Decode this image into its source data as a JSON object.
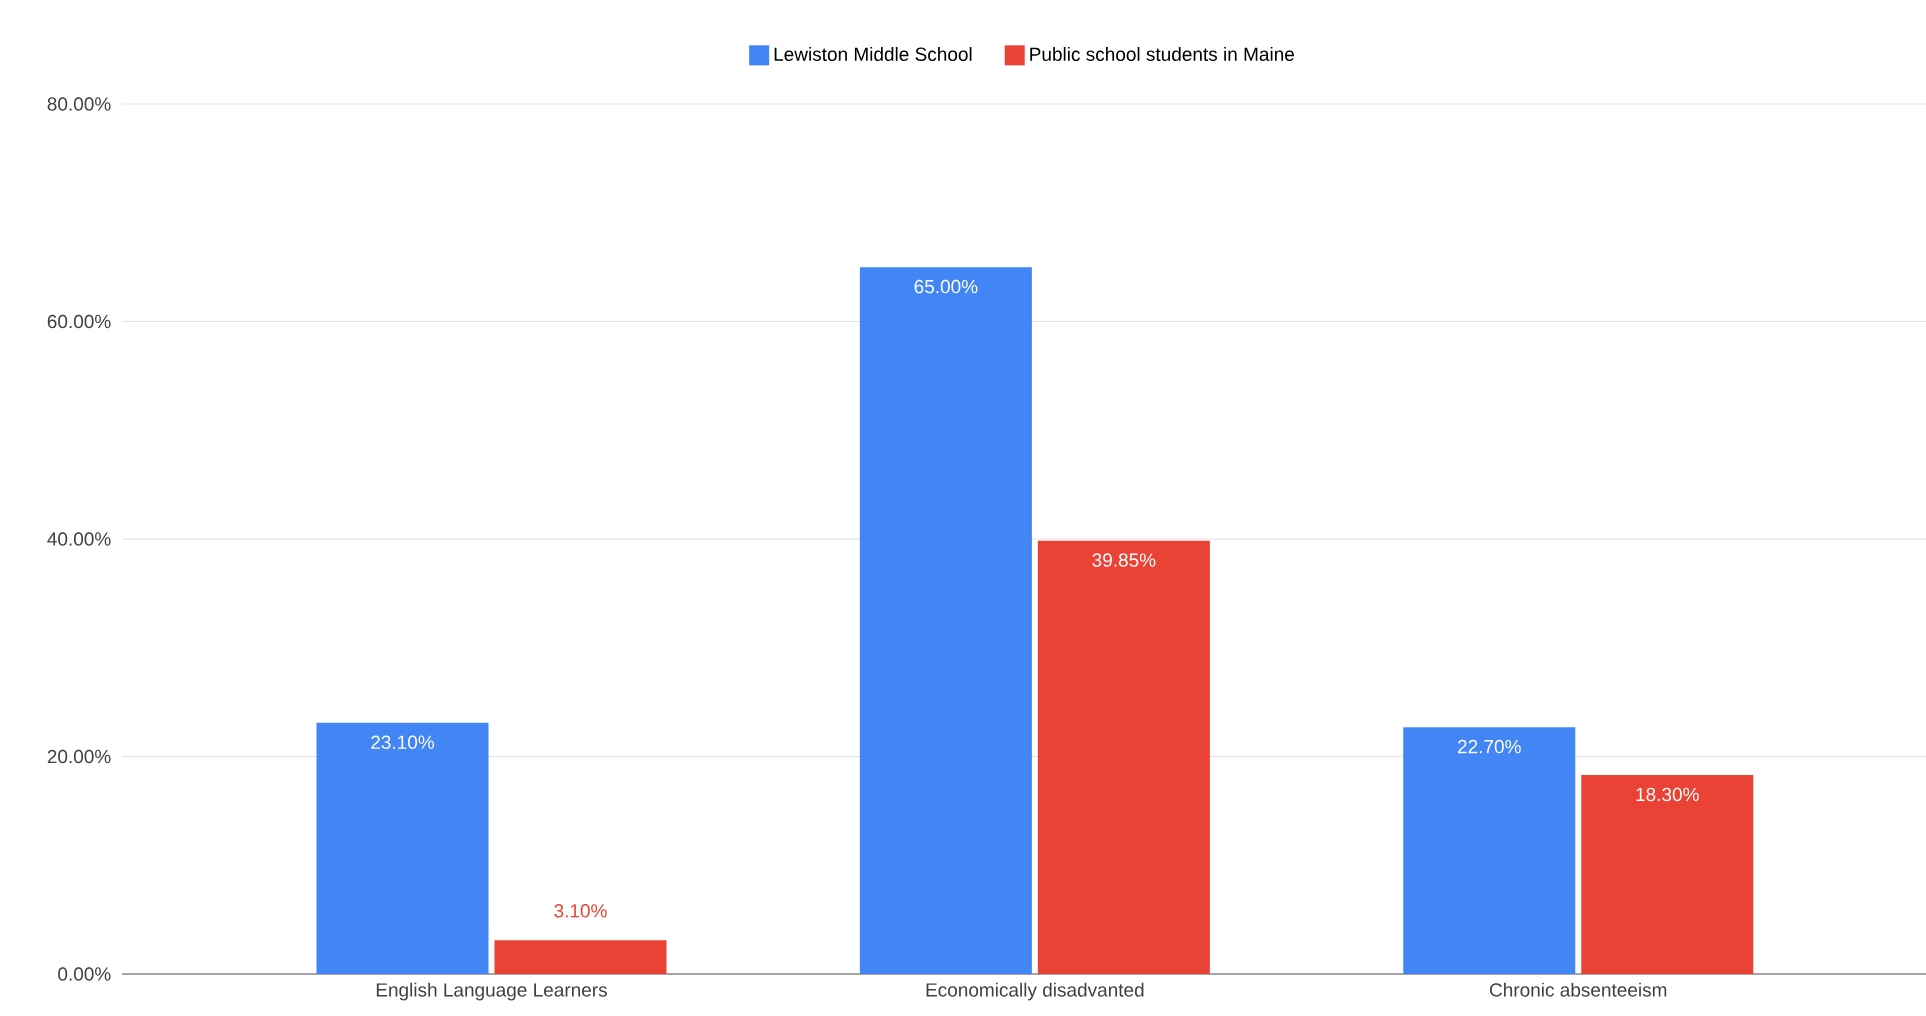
{
  "chart_data": {
    "type": "bar",
    "categories": [
      "English Language Learners",
      "Economically disadvanted",
      "Chronic absenteeism"
    ],
    "series": [
      {
        "name": "Lewiston Middle School",
        "color": "#4285f4",
        "values": [
          23.1,
          65.0,
          22.7
        ],
        "value_labels": [
          "23.10%",
          "65.00%",
          "22.70%"
        ]
      },
      {
        "name": "Public school students in Maine",
        "color": "#ea4335",
        "values": [
          3.1,
          39.85,
          18.3
        ],
        "value_labels": [
          "3.10%",
          "39.85%",
          "18.30%"
        ]
      }
    ],
    "ylim": [
      0,
      80
    ],
    "yticks": [
      {
        "value": 0,
        "label": "0.00%"
      },
      {
        "value": 20,
        "label": "20.00%"
      },
      {
        "value": 40,
        "label": "40.00%"
      },
      {
        "value": 60,
        "label": "60.00%"
      },
      {
        "value": 80,
        "label": "80.00%"
      }
    ],
    "grid": "y",
    "legend": "top"
  }
}
